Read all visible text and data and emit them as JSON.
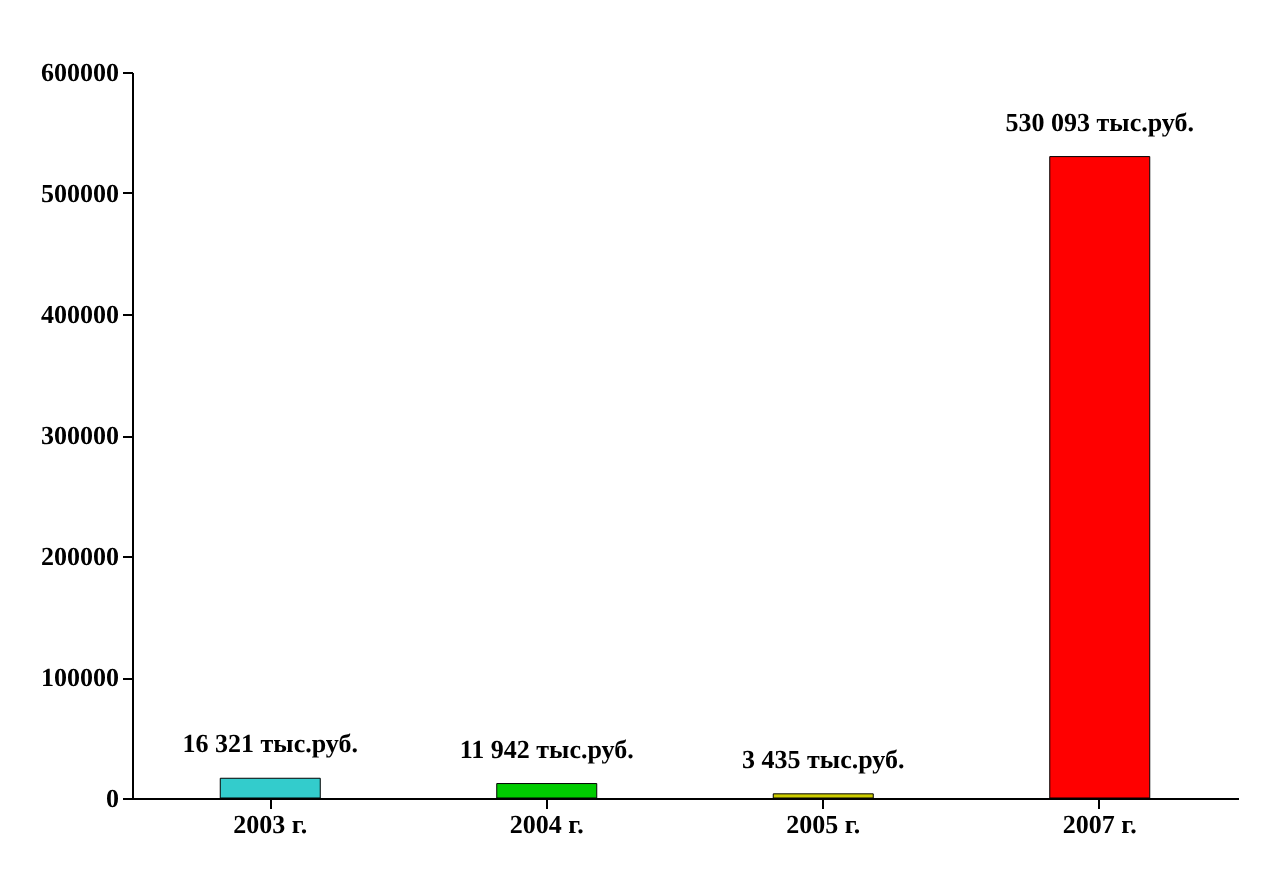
{
  "chart_data": {
    "type": "bar",
    "categories": [
      "2003 г.",
      "2004 г.",
      "2005 г.",
      "2007 г."
    ],
    "values": [
      16321,
      11942,
      3435,
      530093
    ],
    "colors": [
      "#33cccc",
      "#00cc00",
      "#cccc00",
      "#ff0000"
    ],
    "value_labels": [
      "16 321 тыс.руб.",
      "11 942 тыс.руб.",
      "3 435 тыс.руб.",
      "530 093 тыс.руб."
    ],
    "ylim": [
      0,
      600000
    ],
    "yticks": [
      0,
      100000,
      200000,
      300000,
      400000,
      500000,
      600000
    ],
    "grid": false
  }
}
